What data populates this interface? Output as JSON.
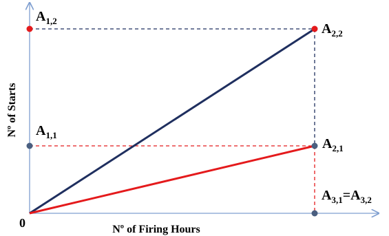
{
  "axes": {
    "x_title": "Nº of Firing Hours",
    "y_title": "Nº of Starts",
    "origin_label": "0"
  },
  "points": {
    "a12": {
      "main": "A",
      "sub": "1,2"
    },
    "a22": {
      "main": "A",
      "sub": "2,2"
    },
    "a11": {
      "main": "A",
      "sub": "1,1"
    },
    "a21": {
      "main": "A",
      "sub": "2,1"
    },
    "a31": {
      "main": "A",
      "sub": "3,1"
    },
    "eq": "=",
    "a32": {
      "main": "A",
      "sub": "3,2"
    }
  },
  "colors": {
    "axis": "#7f9fd0",
    "navy": "#1f2f5f",
    "red": "#e41a1c",
    "marker_gray": "#4a5f80",
    "marker_red": "#e41a1c"
  }
}
